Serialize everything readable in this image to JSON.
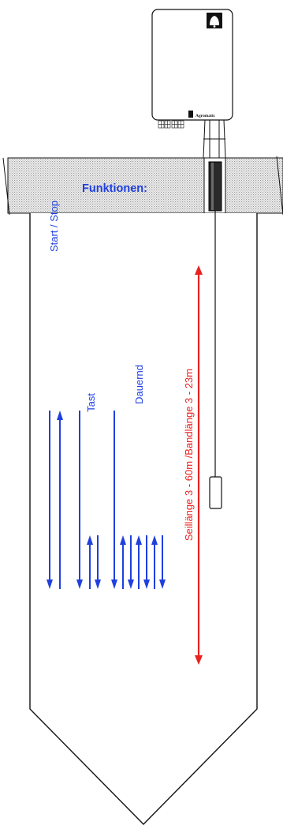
{
  "brand": {
    "name": "Agromatic"
  },
  "functions": {
    "heading": "Funktionen:",
    "modes": [
      {
        "label": "Start / Stop"
      },
      {
        "label": "Tast"
      },
      {
        "label": "Dauernd"
      }
    ]
  },
  "measurement": {
    "label": "Seillänge 3 - 60m  /Bandlänge 3 - 23m"
  },
  "colors": {
    "arrow_blue": "#1f3fe0",
    "arrow_red": "#e8231f",
    "line": "#111111",
    "hatch": "#b8b8b8"
  }
}
